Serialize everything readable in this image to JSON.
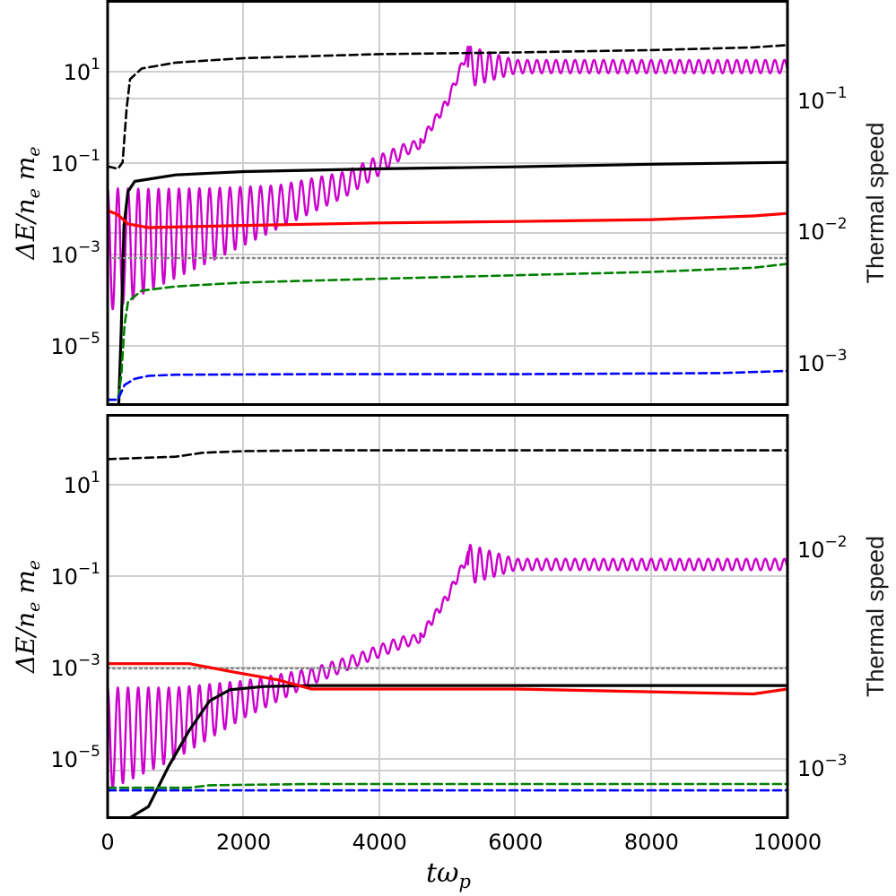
{
  "chart_data": {
    "type": "line",
    "shared_xlabel": "tω_p",
    "xlim": [
      0,
      10000
    ],
    "xticks": [
      "0",
      "2000",
      "4000",
      "6000",
      "8000",
      "10000"
    ],
    "grid": true,
    "panels": [
      {
        "name": "top",
        "ylabel_left": "ΔE/n_e m_e",
        "ylabel_right": "Thermal speed",
        "yscale_left": "log",
        "yscale_right": "log",
        "ylim_left": [
          1.4e-07,
          800
        ],
        "ylim_right": [
          0.00068,
          0.45
        ],
        "left_ticks": [
          {
            "base": "10",
            "exp": "1"
          },
          {
            "base": "10",
            "exp": "−1"
          },
          {
            "base": "10",
            "exp": "−3"
          },
          {
            "base": "10",
            "exp": "−5"
          }
        ],
        "right_ticks": [
          {
            "base": "10",
            "exp": "−1"
          },
          {
            "base": "10",
            "exp": "−2"
          },
          {
            "base": "10",
            "exp": "−3"
          }
        ],
        "series": [
          {
            "axis": "left",
            "style": "dashed",
            "color": "#000000",
            "points": [
              [
                0,
                0.08
              ],
              [
                150,
                0.07
              ],
              [
                220,
                0.1
              ],
              [
                280,
                2
              ],
              [
                330,
                10
              ],
              [
                500,
                18
              ],
              [
                1000,
                25
              ],
              [
                2000,
                32
              ],
              [
                4000,
                40
              ],
              [
                6000,
                44
              ],
              [
                8000,
                50
              ],
              [
                9500,
                58
              ],
              [
                10000,
                66
              ]
            ]
          },
          {
            "axis": "left",
            "style": "solid",
            "color": "#000000",
            "points": [
              [
                160,
                1e-07
              ],
              [
                200,
                1e-05
              ],
              [
                240,
                0.003
              ],
              [
                300,
                0.02
              ],
              [
                400,
                0.035
              ],
              [
                1000,
                0.05
              ],
              [
                2000,
                0.06
              ],
              [
                4000,
                0.07
              ],
              [
                6000,
                0.078
              ],
              [
                8000,
                0.09
              ],
              [
                10000,
                0.1
              ]
            ]
          },
          {
            "axis": "left",
            "style": "dotted",
            "color": "#888888",
            "points": [
              [
                0,
                0.0005
              ],
              [
                10000,
                0.0005
              ]
            ]
          },
          {
            "axis": "right",
            "style": "solid",
            "color": "#ff0000",
            "points": [
              [
                0,
                0.0155
              ],
              [
                150,
                0.0145
              ],
              [
                300,
                0.0125
              ],
              [
                600,
                0.0118
              ],
              [
                2000,
                0.0122
              ],
              [
                4000,
                0.0127
              ],
              [
                6000,
                0.013
              ],
              [
                8000,
                0.0134
              ],
              [
                9500,
                0.0142
              ],
              [
                10000,
                0.0148
              ]
            ]
          },
          {
            "axis": "right",
            "style": "dashed",
            "color": "#008000",
            "points": [
              [
                0,
                0.00075
              ],
              [
                150,
                0.00075
              ],
              [
                200,
                0.0011
              ],
              [
                250,
                0.0025
              ],
              [
                300,
                0.0036
              ],
              [
                500,
                0.0043
              ],
              [
                1000,
                0.0046
              ],
              [
                2000,
                0.0049
              ],
              [
                4000,
                0.0052
              ],
              [
                6000,
                0.0055
              ],
              [
                8000,
                0.0058
              ],
              [
                9500,
                0.0062
              ],
              [
                10000,
                0.0066
              ]
            ]
          },
          {
            "axis": "right",
            "style": "dashed",
            "color": "#0000ff",
            "points": [
              [
                0,
                0.00075
              ],
              [
                150,
                0.00075
              ],
              [
                250,
                0.00095
              ],
              [
                400,
                0.00105
              ],
              [
                600,
                0.0011
              ],
              [
                1000,
                0.00112
              ],
              [
                3000,
                0.00113
              ],
              [
                6000,
                0.00113
              ],
              [
                9000,
                0.00115
              ],
              [
                10000,
                0.00119
              ]
            ]
          }
        ],
        "oscillating_series": [
          {
            "axis": "left",
            "color": "#cc00cc",
            "period": 150,
            "envelope": [
              {
                "t": 0,
                "upper": 0.024,
                "lower": 2.5e-05
              },
              {
                "t": 600,
                "upper": 0.023,
                "lower": 8e-05
              },
              {
                "t": 1500,
                "upper": 0.024,
                "lower": 0.0004
              },
              {
                "t": 2500,
                "upper": 0.028,
                "lower": 0.0025
              },
              {
                "t": 3500,
                "upper": 0.06,
                "lower": 0.015
              },
              {
                "t": 4000,
                "upper": 0.15,
                "lower": 0.05
              },
              {
                "t": 4400,
                "upper": 0.3,
                "lower": 0.15
              },
              {
                "t": 4600,
                "upper": 0.35,
                "lower": 0.22
              }
            ],
            "growth": [
              [
                4600,
                0.3
              ],
              [
                5000,
                3
              ],
              [
                5300,
                50
              ]
            ],
            "saturation": {
              "t": 5300,
              "mean": 20,
              "amp_start": 0.5,
              "amp_end": 0.16,
              "decay_to": 6000,
              "period_after": 140
            }
          }
        ]
      },
      {
        "name": "bottom",
        "ylabel_left": "ΔE/n_e m_e",
        "ylabel_right": "Thermal speed",
        "yscale_left": "log",
        "yscale_right": "log",
        "ylim_left": [
          1e-07,
          900
        ],
        "ylim_right": [
          0.00058,
          0.032
        ],
        "left_ticks": [
          {
            "base": "10",
            "exp": "1"
          },
          {
            "base": "10",
            "exp": "−1"
          },
          {
            "base": "10",
            "exp": "−3"
          },
          {
            "base": "10",
            "exp": "−5"
          }
        ],
        "right_ticks": [
          {
            "base": "10",
            "exp": "−2"
          },
          {
            "base": "10",
            "exp": "−3"
          }
        ],
        "series": [
          {
            "axis": "left",
            "style": "dashed",
            "color": "#000000",
            "points": [
              [
                0,
                70
              ],
              [
                1000,
                80
              ],
              [
                1400,
                100
              ],
              [
                2000,
                110
              ],
              [
                3000,
                115
              ],
              [
                6000,
                115
              ],
              [
                10000,
                115
              ]
            ]
          },
          {
            "axis": "left",
            "style": "solid",
            "color": "#000000",
            "points": [
              [
                300,
                1e-07
              ],
              [
                600,
                2e-07
              ],
              [
                900,
                2e-06
              ],
              [
                1200,
                1.5e-05
              ],
              [
                1500,
                8e-05
              ],
              [
                1800,
                0.00015
              ],
              [
                2300,
                0.00018
              ],
              [
                3000,
                0.00019
              ],
              [
                10000,
                0.00019
              ]
            ]
          },
          {
            "axis": "left",
            "style": "dotted",
            "color": "#888888",
            "points": [
              [
                0,
                0.0005
              ],
              [
                10000,
                0.0005
              ]
            ]
          },
          {
            "axis": "right",
            "style": "solid",
            "color": "#ff0000",
            "points": [
              [
                0,
                0.0027
              ],
              [
                1200,
                0.0027
              ],
              [
                1800,
                0.0025
              ],
              [
                2500,
                0.0023
              ],
              [
                3000,
                0.0021
              ],
              [
                4000,
                0.0021
              ],
              [
                6000,
                0.0021
              ],
              [
                9500,
                0.002
              ],
              [
                10000,
                0.0021
              ]
            ]
          },
          {
            "axis": "right",
            "style": "dashed",
            "color": "#008000",
            "points": [
              [
                0,
                0.00079
              ],
              [
                1200,
                0.00079
              ],
              [
                1500,
                0.00081
              ],
              [
                3000,
                0.00082
              ],
              [
                6000,
                0.00082
              ],
              [
                10000,
                0.00082
              ]
            ]
          },
          {
            "axis": "right",
            "style": "dashed",
            "color": "#0000ff",
            "points": [
              [
                0,
                0.00077
              ],
              [
                10000,
                0.00077
              ]
            ]
          }
        ],
        "oscillating_series": [
          {
            "axis": "left",
            "color": "#cc00cc",
            "period": 150,
            "envelope": [
              {
                "t": 0,
                "upper": 0.00017,
                "lower": 5e-07
              },
              {
                "t": 1000,
                "upper": 0.00017,
                "lower": 3e-06
              },
              {
                "t": 2000,
                "upper": 0.00025,
                "lower": 3e-05
              },
              {
                "t": 3000,
                "upper": 0.0005,
                "lower": 0.0002
              },
              {
                "t": 3700,
                "upper": 0.0012,
                "lower": 0.0006
              },
              {
                "t": 4300,
                "upper": 0.003,
                "lower": 0.0015
              },
              {
                "t": 4600,
                "upper": 0.0035,
                "lower": 0.0022
              }
            ],
            "growth": [
              [
                4600,
                0.003
              ],
              [
                5000,
                0.03
              ],
              [
                5300,
                0.3
              ]
            ],
            "saturation": {
              "t": 5300,
              "mean": 0.18,
              "amp_start": 0.5,
              "amp_end": 0.14,
              "decay_to": 6000,
              "period_after": 140
            }
          }
        ]
      }
    ]
  }
}
